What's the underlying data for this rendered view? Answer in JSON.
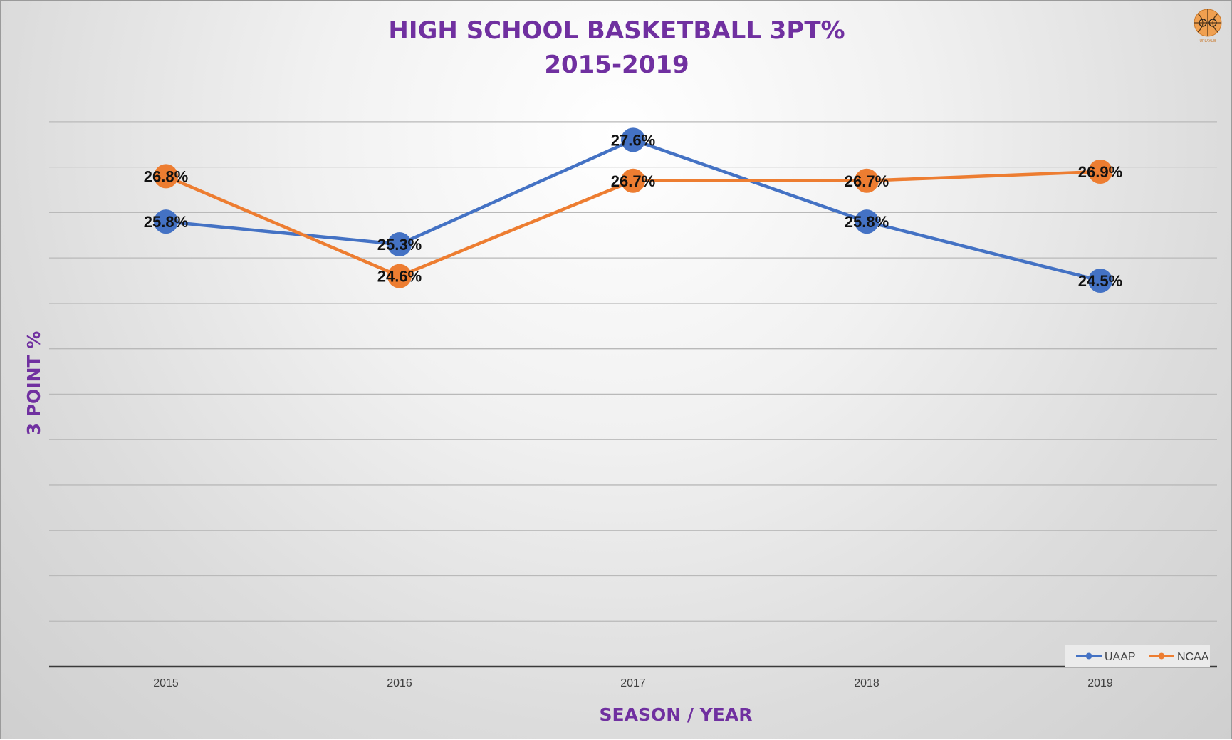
{
  "chart_data": {
    "type": "line",
    "title": "HIGH SCHOOL BASKETBALL 3PT%",
    "subtitle": "2015-2019",
    "xlabel": "SEASON / YEAR",
    "ylabel": "3 POINT %",
    "categories": [
      "2015",
      "2016",
      "2017",
      "2018",
      "2019"
    ],
    "ylim": [
      16,
      28.5
    ],
    "grid": true,
    "legend_position": "bottom-right",
    "series": [
      {
        "name": "UAAP",
        "color": "#4472c4",
        "values": [
          25.8,
          25.3,
          27.6,
          25.8,
          24.5
        ],
        "labels": [
          "25.8%",
          "25.3%",
          "27.6%",
          "25.8%",
          "24.5%"
        ]
      },
      {
        "name": "NCAA",
        "color": "#ed7d31",
        "values": [
          26.8,
          24.6,
          26.7,
          26.7,
          26.9
        ],
        "labels": [
          "26.8%",
          "24.6%",
          "26.7%",
          "26.7%",
          "26.9%"
        ]
      }
    ]
  },
  "logo": {
    "icon": "basketball-logo-icon",
    "caption": "UPLAYUB"
  }
}
